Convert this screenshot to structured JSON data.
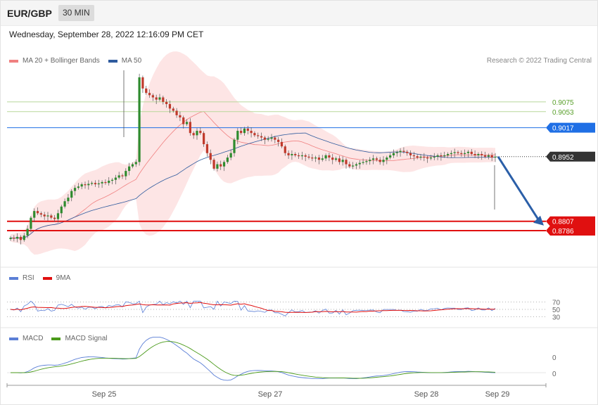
{
  "header": {
    "symbol": "EUR/GBP",
    "timeframe": "30 MIN"
  },
  "datetime": "Wednesday, September 28, 2022 12:16:09 PM CET",
  "main_legend": [
    {
      "label": "MA 20 + Bollinger Bands",
      "color": "#f08080"
    },
    {
      "label": "MA 50",
      "color": "#2f5b9e"
    }
  ],
  "credit": "Research © 2022 Trading Central",
  "levels": [
    {
      "label": "0.9075",
      "value": 0.9075,
      "color": "#5aa02c",
      "style": "thin"
    },
    {
      "label": "0.9053",
      "value": 0.9053,
      "color": "#5aa02c",
      "style": "thin"
    },
    {
      "label": "0.9017",
      "value": 0.9017,
      "color": "#1f6fe5",
      "style": "tag"
    },
    {
      "label": "0.8952",
      "value": 0.8952,
      "color": "#333333",
      "style": "tag"
    },
    {
      "label": "0.8807",
      "value": 0.8807,
      "color": "#e01010",
      "style": "tag"
    },
    {
      "label": "0.8786",
      "value": 0.8786,
      "color": "#e01010",
      "style": "tag"
    }
  ],
  "rsi_legend": [
    {
      "label": "RSI",
      "color": "#5b7fd6"
    },
    {
      "label": "9MA",
      "color": "#e01010"
    }
  ],
  "rsi_ticks": [
    "70",
    "50",
    "30"
  ],
  "macd_legend": [
    {
      "label": "MACD",
      "color": "#5b7fd6"
    },
    {
      "label": "MACD Signal",
      "color": "#4a9a1a"
    }
  ],
  "macd_ticks": [
    "0",
    "0"
  ],
  "x_labels": [
    "Sep 25",
    "Sep 27",
    "Sep 28",
    "Sep 29"
  ],
  "chart_data": {
    "type": "candlestick",
    "x_labels": [
      "Sep 25",
      "Sep 27",
      "Sep 28",
      "Sep 29"
    ],
    "last_price": 0.8952,
    "resistance": [
      0.9017,
      0.9053,
      0.9075
    ],
    "support": [
      0.8807,
      0.8786
    ],
    "forecast_arrow": {
      "from": 0.8952,
      "to": 0.8807
    },
    "close_series": [
      0.877,
      0.8768,
      0.8772,
      0.8765,
      0.8775,
      0.879,
      0.8815,
      0.883,
      0.8825,
      0.8822,
      0.8818,
      0.882,
      0.8815,
      0.8812,
      0.8825,
      0.884,
      0.8852,
      0.886,
      0.8875,
      0.8882,
      0.8885,
      0.889,
      0.8888,
      0.8891,
      0.8893,
      0.889,
      0.8892,
      0.8895,
      0.8893,
      0.8898,
      0.89,
      0.8905,
      0.891,
      0.8908,
      0.892,
      0.893,
      0.8935,
      0.894,
      0.913,
      0.9105,
      0.9095,
      0.909,
      0.9085,
      0.908,
      0.9085,
      0.9075,
      0.907,
      0.906,
      0.9055,
      0.9045,
      0.904,
      0.9025,
      0.903,
      0.9005,
      0.9,
      0.901,
      0.9005,
      0.898,
      0.896,
      0.8945,
      0.8925,
      0.8935,
      0.893,
      0.894,
      0.895,
      0.896,
      0.899,
      0.901,
      0.9005,
      0.9015,
      0.901,
      0.9005,
      0.9,
      0.8998,
      0.8995,
      0.899,
      0.8992,
      0.8995,
      0.899,
      0.8985,
      0.8975,
      0.896,
      0.8955,
      0.8958,
      0.8955,
      0.8953,
      0.8955,
      0.8952,
      0.895,
      0.8948,
      0.895,
      0.8945,
      0.8948,
      0.8955,
      0.895,
      0.8945,
      0.8948,
      0.894,
      0.8945,
      0.8935,
      0.893,
      0.8932,
      0.8935,
      0.8938,
      0.894,
      0.8942,
      0.8945,
      0.8948,
      0.8945,
      0.894,
      0.8945,
      0.895,
      0.8955,
      0.896,
      0.8962,
      0.8965,
      0.8963,
      0.896,
      0.8955,
      0.8953,
      0.895,
      0.8952,
      0.895,
      0.8948,
      0.895,
      0.8952,
      0.8955,
      0.8953,
      0.8955,
      0.8958,
      0.896,
      0.8962,
      0.896,
      0.8958,
      0.896,
      0.8963,
      0.8958,
      0.8955,
      0.8958,
      0.8955,
      0.8952,
      0.8955,
      0.895,
      0.8952
    ],
    "rsi_levels": [
      70,
      50,
      30
    ]
  }
}
